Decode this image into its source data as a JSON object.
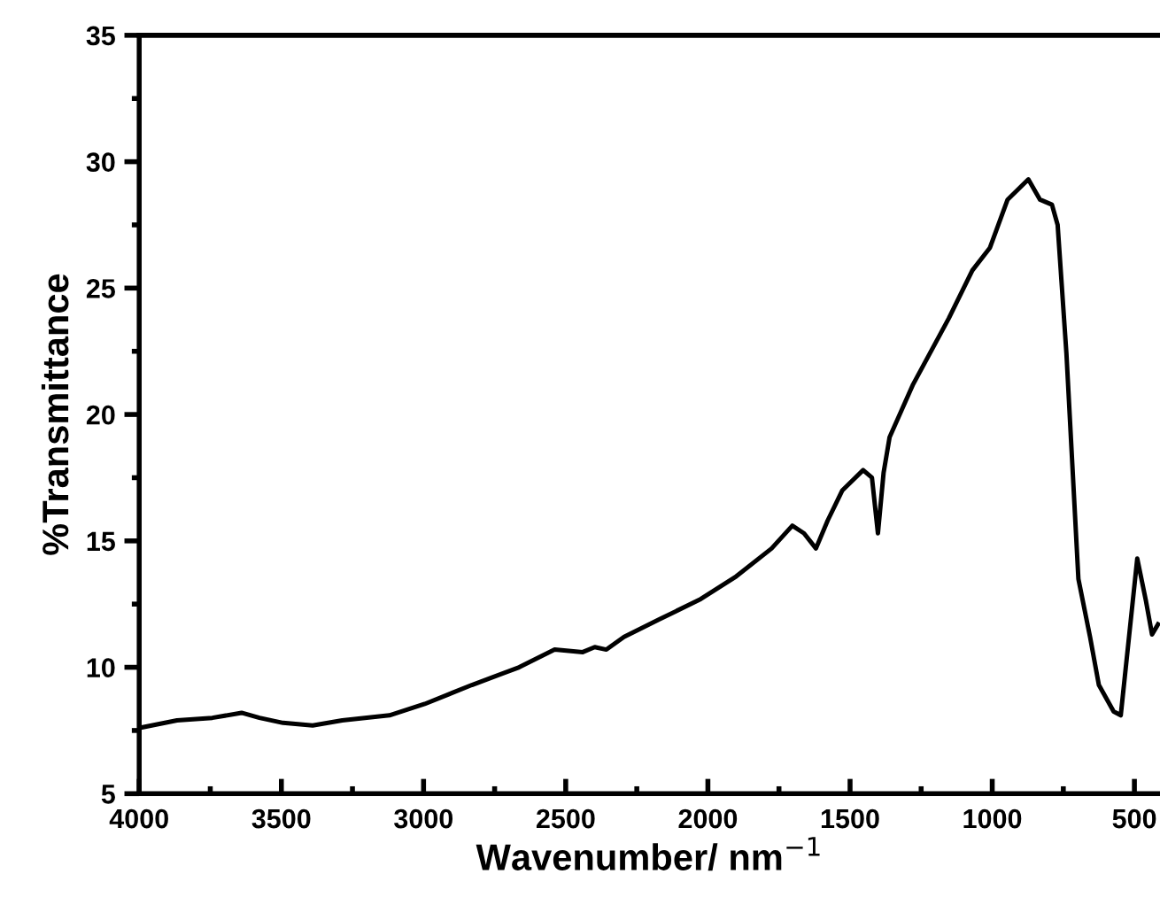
{
  "chart_data": {
    "type": "line",
    "xlabel": "Wavenumber/ nm$^{−1}$",
    "ylabel": "%Transmittance",
    "xlim": [
      4000,
      410
    ],
    "xticks": [
      4000,
      3500,
      3000,
      2500,
      2000,
      1500,
      1000,
      500
    ],
    "ylim": [
      5,
      35
    ],
    "yticks": [
      5,
      10,
      15,
      20,
      25,
      30,
      35
    ],
    "grid": false,
    "marker": "none",
    "line_style": "solid",
    "series": [
      {
        "color": "#000000",
        "x": [
          4000,
          3867,
          3743,
          3640,
          3577,
          3494,
          3390,
          3286,
          3120,
          2996,
          2830,
          2664,
          2539,
          2440,
          2398,
          2357,
          2295,
          2170,
          2025,
          1900,
          1776,
          1703,
          1662,
          1620,
          1579,
          1527,
          1454,
          1423,
          1402,
          1382,
          1361,
          1278,
          1153,
          1070,
          1008,
          946,
          873,
          832,
          790,
          770,
          739,
          697,
          656,
          625,
          573,
          548,
          490,
          459,
          438,
          417
        ],
        "values": [
          7.6,
          7.9,
          8.0,
          8.2,
          8.0,
          7.8,
          7.7,
          7.9,
          8.1,
          8.55,
          9.3,
          10.0,
          10.7,
          10.6,
          10.8,
          10.7,
          11.2,
          11.9,
          12.7,
          13.6,
          14.7,
          15.6,
          15.3,
          14.7,
          15.8,
          17.0,
          17.8,
          17.5,
          15.3,
          17.7,
          19.1,
          21.2,
          23.8,
          25.7,
          26.6,
          28.5,
          29.3,
          28.5,
          28.3,
          27.5,
          22.4,
          13.5,
          11.2,
          9.3,
          8.25,
          8.1,
          14.3,
          12.6,
          11.3,
          11.7
        ]
      }
    ]
  }
}
